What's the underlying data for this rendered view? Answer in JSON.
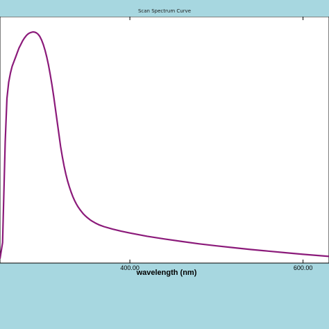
{
  "window": {
    "title": "Scan Spectrum Curve"
  },
  "colors": {
    "background": "#a7d7e0",
    "plot_background": "#ffffff",
    "curve": "#8b1a7a"
  },
  "chart_data": {
    "type": "line",
    "title": "Scan Spectrum Curve",
    "xlabel": "wavelength (nm)",
    "ylabel": "",
    "grid": false,
    "xlim": [
      250,
      630
    ],
    "ylim": [
      0,
      1
    ],
    "x_ticks": [
      {
        "value": 400,
        "label": "400.00"
      },
      {
        "value": 600,
        "label": "600.00"
      }
    ],
    "series": [
      {
        "name": "",
        "x": [
          250,
          253,
          256,
          258,
          260,
          262,
          264,
          266,
          268,
          270,
          272,
          274,
          276,
          278,
          280,
          282,
          284,
          286,
          288,
          290,
          292,
          294,
          296,
          298,
          300,
          302,
          304,
          306,
          308,
          310,
          312,
          314,
          316,
          318,
          320,
          322,
          324,
          326,
          328,
          330,
          332,
          334,
          336,
          338,
          340,
          342,
          344,
          346,
          348,
          350,
          352,
          354,
          356,
          360,
          365,
          370,
          380,
          390,
          400,
          420,
          440,
          460,
          480,
          500,
          520,
          540,
          560,
          580,
          600,
          620,
          630
        ],
        "values": [
          0.01,
          0.08,
          0.52,
          0.71,
          0.78,
          0.82,
          0.85,
          0.87,
          0.89,
          0.91,
          0.93,
          0.945,
          0.96,
          0.972,
          0.982,
          0.99,
          0.995,
          0.998,
          1.0,
          0.999,
          0.996,
          0.99,
          0.98,
          0.965,
          0.945,
          0.92,
          0.89,
          0.855,
          0.815,
          0.77,
          0.72,
          0.665,
          0.61,
          0.555,
          0.5,
          0.455,
          0.415,
          0.38,
          0.35,
          0.325,
          0.302,
          0.282,
          0.265,
          0.25,
          0.237,
          0.226,
          0.216,
          0.207,
          0.199,
          0.192,
          0.186,
          0.18,
          0.175,
          0.166,
          0.157,
          0.15,
          0.139,
          0.13,
          0.122,
          0.108,
          0.096,
          0.085,
          0.075,
          0.066,
          0.058,
          0.05,
          0.043,
          0.036,
          0.029,
          0.023,
          0.02
        ]
      }
    ]
  }
}
